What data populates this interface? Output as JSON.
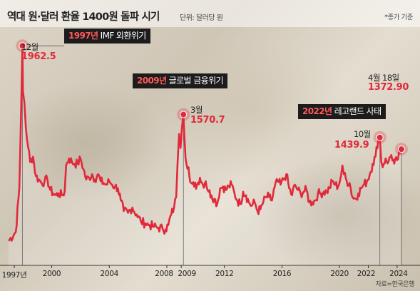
{
  "header": {
    "title": "역대 원·달러 환율 1400원 돌파 시기",
    "unit": "단위: 달러당 원",
    "note": "*종가 기준"
  },
  "source": "자료=한국은행",
  "colors": {
    "line": "#e0293a",
    "marker": "#e0293a",
    "label_box": "#1c1c1c",
    "event_year": "#ff5a5a"
  },
  "events": [
    {
      "year": "1997년",
      "text": "IMF 외환위기",
      "date": "12월",
      "value": "1962.5"
    },
    {
      "year": "2009년",
      "text": "글로벌 금융위기",
      "date": "3월",
      "value": "1570.7"
    },
    {
      "year": "2022년",
      "text": "레고랜드 사태",
      "date": "10월",
      "value": "1439.9"
    },
    {
      "year": "",
      "text": "",
      "date": "4월 18일",
      "value": "1372.90"
    }
  ],
  "chart_data": {
    "type": "line",
    "title": "역대 원·달러 환율 1400원 돌파 시기",
    "ylabel": "",
    "xlabel": "",
    "x_tick_labels": [
      "1997년",
      "2000",
      "2004",
      "2008",
      "2009",
      "2012",
      "2016",
      "2020",
      "2022",
      "2024"
    ],
    "x_tick_values": [
      1997,
      2000,
      2004,
      2008,
      2009,
      2012,
      2016,
      2020,
      2022,
      2024
    ],
    "ylim": [
      800,
      2000
    ],
    "grid": false,
    "series": [
      {
        "x": [
          1997.0,
          1997.5,
          1997.75,
          1997.9,
          1997.96,
          1998.0,
          1998.1,
          1998.2,
          1998.35,
          1998.5,
          1998.7,
          1998.9,
          1999.1,
          1999.3,
          1999.5,
          1999.7,
          1999.9,
          2000.1,
          2000.3,
          2000.5,
          2000.7,
          2000.9,
          2001.0,
          2001.2,
          2001.4,
          2001.6,
          2001.8,
          2002.0,
          2002.2,
          2002.4,
          2002.6,
          2002.8,
          2003.0,
          2003.2,
          2003.4,
          2003.6,
          2003.8,
          2004.0,
          2004.2,
          2004.4,
          2004.6,
          2004.8,
          2005.0,
          2005.3,
          2005.6,
          2005.9,
          2006.2,
          2006.5,
          2006.8,
          2007.1,
          2007.4,
          2007.7,
          2007.9,
          2008.1,
          2008.3,
          2008.5,
          2008.65,
          2008.75,
          2008.85,
          2008.95,
          2009.05,
          2009.15,
          2009.2,
          2009.3,
          2009.5,
          2009.7,
          2009.9,
          2010.1,
          2010.3,
          2010.5,
          2010.7,
          2010.9,
          2011.1,
          2011.3,
          2011.5,
          2011.7,
          2011.9,
          2012.1,
          2012.3,
          2012.5,
          2012.7,
          2012.9,
          2013.1,
          2013.3,
          2013.5,
          2013.7,
          2013.9,
          2014.1,
          2014.3,
          2014.5,
          2014.7,
          2014.9,
          2015.1,
          2015.3,
          2015.5,
          2015.7,
          2015.9,
          2016.1,
          2016.3,
          2016.5,
          2016.7,
          2016.9,
          2017.1,
          2017.3,
          2017.5,
          2017.7,
          2017.9,
          2018.1,
          2018.3,
          2018.5,
          2018.7,
          2018.9,
          2019.1,
          2019.3,
          2019.5,
          2019.7,
          2019.9,
          2020.1,
          2020.2,
          2020.3,
          2020.5,
          2020.7,
          2020.9,
          2021.1,
          2021.3,
          2021.5,
          2021.7,
          2021.9,
          2022.1,
          2022.3,
          2022.5,
          2022.7,
          2022.8,
          2022.9,
          2023.0,
          2023.2,
          2023.4,
          2023.6,
          2023.8,
          2024.0,
          2024.2,
          2024.3
        ],
        "values": [
          850,
          900,
          1150,
          1700,
          1962.5,
          1700,
          1640,
          1500,
          1390,
          1300,
          1330,
          1220,
          1200,
          1180,
          1190,
          1200,
          1140,
          1120,
          1110,
          1120,
          1110,
          1130,
          1280,
          1320,
          1300,
          1290,
          1290,
          1320,
          1260,
          1200,
          1210,
          1230,
          1200,
          1230,
          1190,
          1180,
          1170,
          1190,
          1170,
          1160,
          1150,
          1080,
          1020,
          1010,
          1040,
          1000,
          960,
          950,
          940,
          930,
          925,
          920,
          915,
          940,
          1000,
          1040,
          1100,
          1300,
          1460,
          1380,
          1500,
          1570.7,
          1480,
          1320,
          1270,
          1180,
          1160,
          1170,
          1210,
          1170,
          1190,
          1130,
          1110,
          1090,
          1060,
          1150,
          1160,
          1140,
          1160,
          1170,
          1120,
          1080,
          1060,
          1130,
          1110,
          1070,
          1050,
          1070,
          1020,
          1030,
          1070,
          1100,
          1100,
          1080,
          1160,
          1190,
          1170,
          1200,
          1230,
          1150,
          1110,
          1170,
          1140,
          1120,
          1130,
          1140,
          1070,
          1070,
          1080,
          1120,
          1120,
          1130,
          1130,
          1150,
          1190,
          1170,
          1160,
          1220,
          1280,
          1230,
          1190,
          1180,
          1100,
          1090,
          1120,
          1150,
          1170,
          1190,
          1230,
          1290,
          1330,
          1440,
          1439.9,
          1300,
          1270,
          1320,
          1300,
          1340,
          1290,
          1310,
          1350,
          1372.9
        ]
      }
    ],
    "highlights": [
      {
        "x": 1997.96,
        "value": 1962.5,
        "label": "12월"
      },
      {
        "x": 2009.15,
        "value": 1570.7,
        "label": "3월"
      },
      {
        "x": 2022.8,
        "value": 1439.9,
        "label": "10월"
      },
      {
        "x": 2024.3,
        "value": 1372.9,
        "label": "4월 18일"
      }
    ]
  }
}
